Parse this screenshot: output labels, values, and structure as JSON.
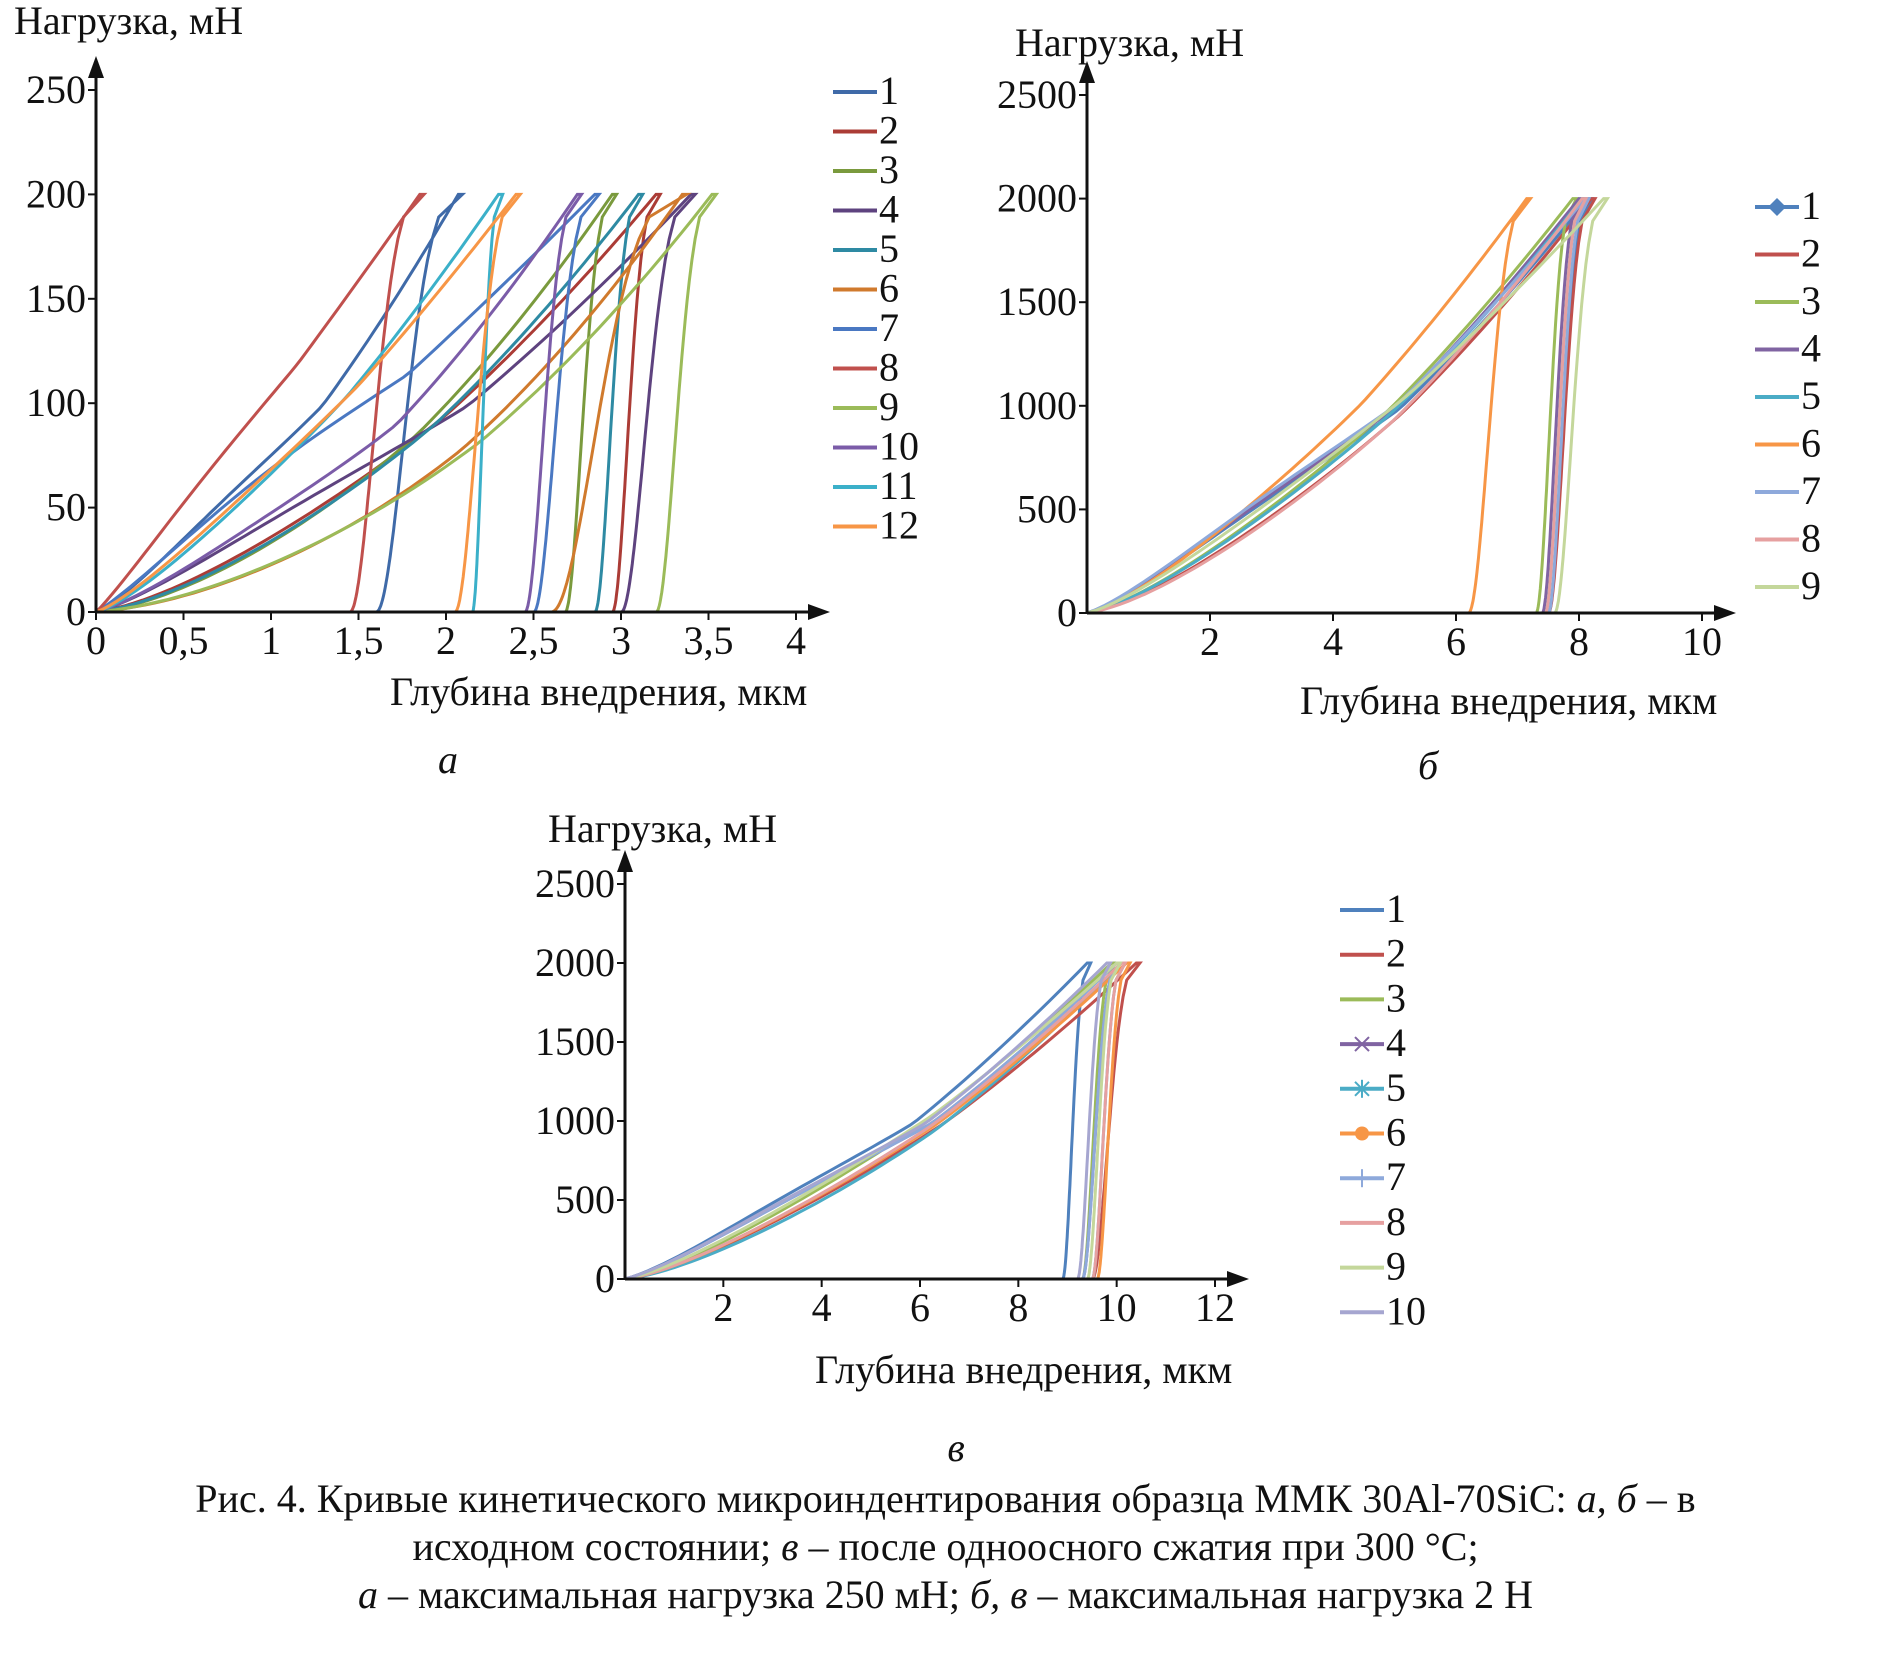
{
  "chart_data": [
    {
      "type": "line",
      "panel_letter": "а",
      "ylabel": "Нагрузка, мН",
      "xlabel": "Глубина внедрения, мкм",
      "xlim": [
        0,
        4
      ],
      "ylim": [
        0,
        250
      ],
      "x_ticks": [
        "0",
        "0,5",
        "1",
        "1,5",
        "2",
        "2,5",
        "3",
        "3,5",
        "4"
      ],
      "x_tick_values": [
        0,
        0.5,
        1,
        1.5,
        2,
        2.5,
        3,
        3.5,
        4
      ],
      "y_ticks": [
        "0",
        "50",
        "100",
        "150",
        "200",
        "250"
      ],
      "y_tick_values": [
        0,
        50,
        100,
        150,
        200,
        250
      ],
      "legend_position": "right",
      "series": [
        {
          "name": "1",
          "color": "#3f6aa8",
          "max_depth": 2.07,
          "final_depth": 1.6,
          "curvature": 1.5,
          "plateau": 0.25
        },
        {
          "name": "2",
          "color": "#ab3c36",
          "max_depth": 3.2,
          "final_depth": 2.95,
          "curvature": 1.6,
          "plateau": 0.35
        },
        {
          "name": "3",
          "color": "#7a9a3d",
          "max_depth": 2.95,
          "final_depth": 2.68,
          "curvature": 1.8,
          "plateau": 0.2
        },
        {
          "name": "4",
          "color": "#5e437f",
          "max_depth": 3.4,
          "final_depth": 3.0,
          "curvature": 1.5,
          "plateau": 0.3
        },
        {
          "name": "5",
          "color": "#2e8aa3",
          "max_depth": 3.1,
          "final_depth": 2.85,
          "curvature": 1.7,
          "plateau": 0.25
        },
        {
          "name": "6",
          "color": "#d07a2d",
          "max_depth": 3.35,
          "final_depth": 2.6,
          "curvature": 2.0,
          "plateau": 0.2
        },
        {
          "name": "7",
          "color": "#4a78c2",
          "max_depth": 2.85,
          "final_depth": 2.5,
          "curvature": 1.2,
          "plateau": 0.3
        },
        {
          "name": "8",
          "color": "#c0504d",
          "max_depth": 1.85,
          "final_depth": 1.45,
          "curvature": 1.1,
          "plateau": 0.3
        },
        {
          "name": "9",
          "color": "#9bbb59",
          "max_depth": 3.52,
          "final_depth": 3.2,
          "curvature": 1.9,
          "plateau": 0.25
        },
        {
          "name": "10",
          "color": "#7b5ca8",
          "max_depth": 2.75,
          "final_depth": 2.45,
          "curvature": 1.7,
          "plateau": 0.3
        },
        {
          "name": "11",
          "color": "#3bb0c9",
          "max_depth": 2.3,
          "final_depth": 2.15,
          "curvature": 1.4,
          "plateau": 0.25
        },
        {
          "name": "12",
          "color": "#f79646",
          "max_depth": 2.4,
          "final_depth": 2.05,
          "curvature": 1.3,
          "plateau": 0.3
        }
      ]
    },
    {
      "type": "line",
      "panel_letter": "б",
      "ylabel": "Нагрузка, мН",
      "xlabel": "Глубина внедрения, мкм",
      "xlim": [
        0,
        10
      ],
      "ylim": [
        0,
        2500
      ],
      "x_ticks": [
        "2",
        "4",
        "6",
        "8",
        "10"
      ],
      "x_tick_values": [
        2,
        4,
        6,
        8,
        10
      ],
      "y_ticks": [
        "0",
        "500",
        "1000",
        "1500",
        "2000",
        "2500"
      ],
      "y_tick_values": [
        0,
        500,
        1000,
        1500,
        2000,
        2500
      ],
      "legend_position": "right",
      "series": [
        {
          "name": "1",
          "color": "#4f81bd",
          "marker": "diamond",
          "max_depth": 8.15,
          "final_depth": 7.5,
          "curvature": 1.5,
          "plateau": 0.15
        },
        {
          "name": "2",
          "color": "#c0504d",
          "max_depth": 8.2,
          "final_depth": 7.5,
          "curvature": 1.55,
          "plateau": 0.15
        },
        {
          "name": "3",
          "color": "#9bbb59",
          "max_depth": 7.9,
          "final_depth": 7.3,
          "curvature": 1.5,
          "plateau": 0.15
        },
        {
          "name": "4",
          "color": "#8064a2",
          "max_depth": 8.0,
          "final_depth": 7.4,
          "curvature": 1.5,
          "plateau": 0.15
        },
        {
          "name": "5",
          "color": "#4bacc6",
          "max_depth": 8.05,
          "final_depth": 7.45,
          "curvature": 1.5,
          "plateau": 0.15
        },
        {
          "name": "6",
          "color": "#f79646",
          "max_depth": 7.15,
          "final_depth": 6.2,
          "curvature": 1.45,
          "plateau": 0.15
        },
        {
          "name": "7",
          "color": "#8ea9db",
          "max_depth": 8.1,
          "final_depth": 7.5,
          "curvature": 1.45,
          "plateau": 0.15
        },
        {
          "name": "8",
          "color": "#e6a0a0",
          "max_depth": 8.05,
          "final_depth": 7.45,
          "curvature": 1.6,
          "plateau": 0.15
        },
        {
          "name": "9",
          "color": "#c4d79b",
          "max_depth": 8.4,
          "final_depth": 7.6,
          "curvature": 1.35,
          "plateau": 0.15
        }
      ]
    },
    {
      "type": "line",
      "panel_letter": "в",
      "ylabel": "Нагрузка, мН",
      "xlabel": "Глубина внедрения, мкм",
      "xlim": [
        0,
        12
      ],
      "ylim": [
        0,
        2500
      ],
      "x_ticks": [
        "2",
        "4",
        "6",
        "8",
        "10",
        "12"
      ],
      "x_tick_values": [
        2,
        4,
        6,
        8,
        10,
        12
      ],
      "y_ticks": [
        "0",
        "500",
        "1000",
        "1500",
        "2000",
        "2500"
      ],
      "y_tick_values": [
        0,
        500,
        1000,
        1500,
        2000,
        2500
      ],
      "legend_position": "right",
      "series": [
        {
          "name": "1",
          "color": "#4f81bd",
          "max_depth": 9.4,
          "final_depth": 8.9,
          "curvature": 1.5,
          "plateau": 0.2
        },
        {
          "name": "2",
          "color": "#c0504d",
          "max_depth": 10.4,
          "final_depth": 9.5,
          "curvature": 1.5,
          "plateau": 0.2
        },
        {
          "name": "3",
          "color": "#9bbb59",
          "max_depth": 9.9,
          "final_depth": 9.3,
          "curvature": 1.45,
          "plateau": 0.2
        },
        {
          "name": "4",
          "color": "#8064a2",
          "marker": "x",
          "max_depth": 10.0,
          "final_depth": 9.3,
          "curvature": 1.5,
          "plateau": 0.2
        },
        {
          "name": "5",
          "color": "#4bacc6",
          "marker": "star",
          "max_depth": 10.1,
          "final_depth": 9.5,
          "curvature": 1.6,
          "plateau": 0.2
        },
        {
          "name": "6",
          "color": "#f79646",
          "marker": "circle",
          "max_depth": 10.2,
          "final_depth": 9.6,
          "curvature": 1.5,
          "plateau": 0.2
        },
        {
          "name": "7",
          "color": "#8ea9db",
          "marker": "plus",
          "max_depth": 10.0,
          "final_depth": 9.3,
          "curvature": 1.5,
          "plateau": 0.2
        },
        {
          "name": "8",
          "color": "#e6a0a0",
          "max_depth": 10.1,
          "final_depth": 9.5,
          "curvature": 1.5,
          "plateau": 0.2
        },
        {
          "name": "9",
          "color": "#c4d79b",
          "max_depth": 10.0,
          "final_depth": 9.4,
          "curvature": 1.4,
          "plateau": 0.2
        },
        {
          "name": "10",
          "color": "#a6a6d0",
          "max_depth": 9.8,
          "final_depth": 9.2,
          "curvature": 1.5,
          "plateau": 0.2
        }
      ]
    }
  ],
  "caption": {
    "line1_a": "Рис. 4. Кривые кинетического микроиндентирования образца ММК 30Al-70SiC: ",
    "line1_b": "а, б",
    "line1_c": " – в",
    "line2_a": "исходном состоянии; ",
    "line2_b": "в",
    "line2_c": " – после одноосного сжатия при 300 °C;",
    "line3_a": "а",
    "line3_b": " – максимальная нагрузка 250 мН; ",
    "line3_c": "б, в",
    "line3_d": " – максимальная нагрузка 2 Н"
  }
}
